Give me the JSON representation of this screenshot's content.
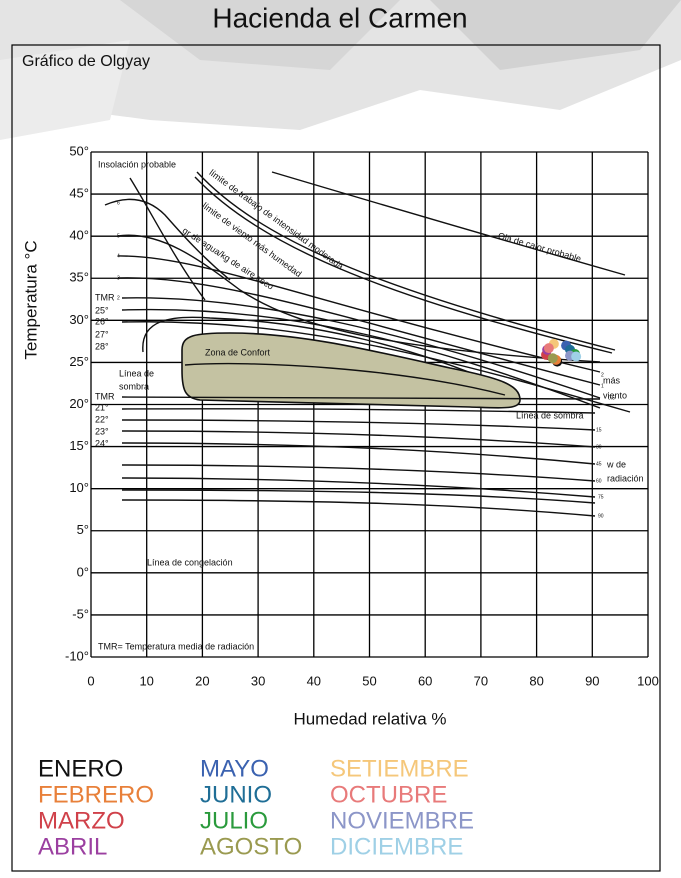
{
  "chart_data": {
    "type": "scatter",
    "title": "Hacienda el Carmen",
    "subtitle": "Gráfico de Olgyay",
    "x_label": "Humedad relativa %",
    "y_label": "Temperatura °C",
    "xlim": [
      0,
      100
    ],
    "ylim": [
      -10,
      50
    ],
    "xticks": [
      0,
      10,
      20,
      30,
      40,
      50,
      60,
      70,
      80,
      90,
      100
    ],
    "yticks": [
      {
        "value": 50,
        "label": "50°"
      },
      {
        "value": 45,
        "label": "45°"
      },
      {
        "value": 40,
        "label": "40°"
      },
      {
        "value": 35,
        "label": "35°"
      },
      {
        "value": 30,
        "label": "30°"
      },
      {
        "value": 25,
        "label": "25°"
      },
      {
        "value": 20,
        "label": "20°"
      },
      {
        "value": 15,
        "label": "15°"
      },
      {
        "value": 10,
        "label": "10°"
      },
      {
        "value": 5,
        "label": "5°"
      },
      {
        "value": 0,
        "label": "0°"
      },
      {
        "value": -5,
        "label": "-5°"
      },
      {
        "value": -10,
        "label": "-10°"
      }
    ],
    "grid": true,
    "series": [
      {
        "name": "ENERO",
        "color": "#111111",
        "x": [
          83.7
        ],
        "values": [
          25.1
        ]
      },
      {
        "name": "FEBRERO",
        "color": "#e8803a",
        "x": [
          83.5
        ],
        "values": [
          25.3
        ]
      },
      {
        "name": "MARZO",
        "color": "#d0414a",
        "x": [
          81.7
        ],
        "values": [
          25.9
        ]
      },
      {
        "name": "ABRIL",
        "color": "#9b3fa0",
        "x": [
          81.9
        ],
        "values": [
          26.5
        ]
      },
      {
        "name": "MAYO",
        "color": "#3b62b0",
        "x": [
          85.3
        ],
        "values": [
          27.0
        ]
      },
      {
        "name": "JUNIO",
        "color": "#1f6e96",
        "x": [
          86.0
        ],
        "values": [
          26.5
        ]
      },
      {
        "name": "JULIO",
        "color": "#2a9a3c",
        "x": [
          86.9
        ],
        "values": [
          26.0
        ]
      },
      {
        "name": "AGOSTO",
        "color": "#9a9a50",
        "x": [
          82.9
        ],
        "values": [
          25.5
        ]
      },
      {
        "name": "SETIEMBRE",
        "color": "#f5c77a",
        "x": [
          83.1
        ],
        "values": [
          27.2
        ]
      },
      {
        "name": "OCTUBRE",
        "color": "#e87a7a",
        "x": [
          82.2
        ],
        "values": [
          26.7
        ]
      },
      {
        "name": "NOVIEMBRE",
        "color": "#8c96c8",
        "x": [
          86.0
        ],
        "values": [
          25.8
        ]
      },
      {
        "name": "DICIEMBRE",
        "color": "#9fd0e6",
        "x": [
          87.1
        ],
        "values": [
          25.7
        ]
      }
    ],
    "annotations": [
      "Insolación probable",
      "límite de trabajo de intensidad moderada",
      "límite de viento más humedad",
      "gr de agua/kg de aire seco",
      "Ola de calor probable",
      "Zona de Confort",
      "Línea de",
      "sombra",
      "Línea de sombra",
      "más",
      "viento",
      "w de",
      "radiación",
      "Línea de congelación",
      "TMR= Temperatura media de radiación",
      "TMR",
      "25°",
      "26°",
      "27°",
      "28°",
      "TMR",
      "21°",
      "22°",
      "23°",
      "24°",
      "2",
      "1",
      "0.5",
      "15",
      "30",
      "45",
      "60",
      "75",
      "90",
      "6",
      "5",
      "4",
      "3",
      "2"
    ]
  }
}
